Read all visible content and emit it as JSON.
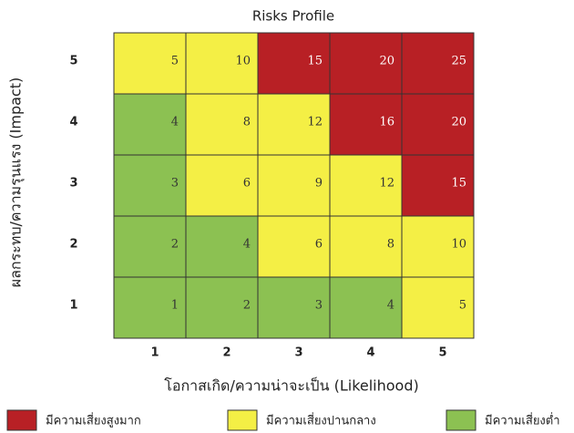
{
  "chart_data": {
    "type": "risk-matrix",
    "title": "Risks Profile",
    "xlabel": "โอกาสเกิด/ความน่าจะเป็น (Likelihood)",
    "ylabel": "ผลกระทบ/ความรุนแรง (Impact)",
    "x": [
      1,
      2,
      3,
      4,
      5
    ],
    "y": [
      5,
      4,
      3,
      2,
      1
    ],
    "values": [
      [
        5,
        10,
        15,
        20,
        25
      ],
      [
        4,
        8,
        12,
        16,
        20
      ],
      [
        3,
        6,
        9,
        12,
        15
      ],
      [
        2,
        4,
        6,
        8,
        10
      ],
      [
        1,
        2,
        3,
        4,
        5
      ]
    ],
    "colors": [
      [
        "#f4ef45",
        "#f4ef45",
        "#b82025",
        "#b82025",
        "#b82025"
      ],
      [
        "#8cc152",
        "#f4ef45",
        "#f4ef45",
        "#b82025",
        "#b82025"
      ],
      [
        "#8cc152",
        "#f4ef45",
        "#f4ef45",
        "#f4ef45",
        "#b82025"
      ],
      [
        "#8cc152",
        "#8cc152",
        "#f4ef45",
        "#f4ef45",
        "#f4ef45"
      ],
      [
        "#8cc152",
        "#8cc152",
        "#8cc152",
        "#8cc152",
        "#f4ef45"
      ]
    ],
    "legend": [
      {
        "name": "มีความเสี่ยงสูงมาก",
        "color": "#b82025"
      },
      {
        "name": "มีความเสี่ยงปานกลาง",
        "color": "#f4ef45"
      },
      {
        "name": "มีความเสี่ยงต่ำ",
        "color": "#8cc152"
      }
    ]
  }
}
